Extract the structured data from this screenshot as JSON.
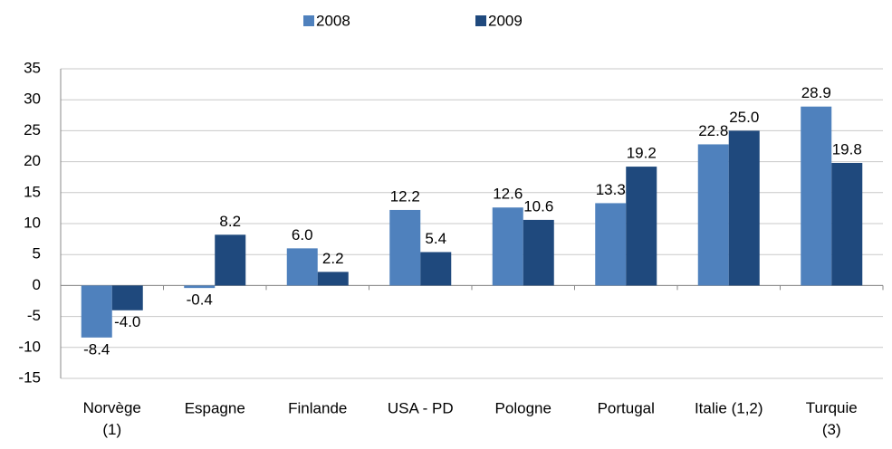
{
  "chart_data": {
    "type": "bar",
    "categories": [
      "Norvège\n(1)",
      "Espagne",
      "Finlande",
      "USA - PD",
      "Pologne",
      "Portugal",
      "Italie (1,2)",
      "Turquie\n(3)"
    ],
    "series": [
      {
        "name": "2008",
        "color": "#4f81bd",
        "values": [
          -8.4,
          -0.4,
          6.0,
          12.2,
          12.6,
          13.3,
          22.8,
          28.9
        ],
        "value_labels": [
          "-8.4",
          "-0.4",
          "6.0",
          "12.2",
          "12.6",
          "13.3",
          "22.8",
          "28.9"
        ]
      },
      {
        "name": "2009",
        "color": "#1f497d",
        "values": [
          -4.0,
          8.2,
          2.2,
          5.4,
          10.6,
          19.2,
          25.0,
          19.8
        ],
        "value_labels": [
          "-4.0",
          "8.2",
          "2.2",
          "5.4",
          "10.6",
          "19.2",
          "25.0",
          "19.8"
        ]
      }
    ],
    "ylim": [
      -15,
      35
    ],
    "yticks": [
      -15,
      -10,
      -5,
      0,
      5,
      10,
      15,
      20,
      25,
      30,
      35
    ],
    "grid": true,
    "legend": "top"
  }
}
